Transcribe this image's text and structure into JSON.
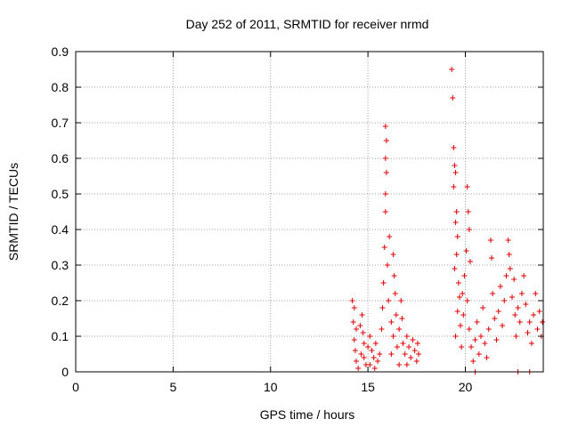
{
  "chart_data": {
    "type": "scatter",
    "title": "Day 252 of 2011, SRMTID for receiver nrmd",
    "xlabel": "GPS time / hours",
    "ylabel": "SRMTID / TECUs",
    "xlim": [
      0,
      24
    ],
    "ylim": [
      0,
      0.9
    ],
    "xticks": [
      0,
      5,
      10,
      15,
      20
    ],
    "yticks": [
      0,
      0.1,
      0.2,
      0.3,
      0.4,
      0.5,
      0.6,
      0.7,
      0.8,
      0.9
    ],
    "ytick_labels": [
      "0",
      "0.1",
      "0.2",
      "0.3",
      "0.4",
      "0.5",
      "0.6",
      "0.7",
      "0.8",
      "0.9"
    ],
    "grid": true,
    "marker": "+",
    "color": "#e00000",
    "series": [
      {
        "points": [
          [
            14.2,
            0.2
          ],
          [
            14.3,
            0.18
          ],
          [
            14.25,
            0.14
          ],
          [
            14.4,
            0.12
          ],
          [
            14.3,
            0.09
          ],
          [
            14.35,
            0.06
          ],
          [
            14.4,
            0.03
          ],
          [
            14.5,
            0.01
          ],
          [
            14.6,
            0.13
          ],
          [
            14.7,
            0.16
          ],
          [
            14.75,
            0.11
          ],
          [
            14.8,
            0.08
          ],
          [
            14.65,
            0.05
          ],
          [
            14.9,
            0.02
          ],
          [
            15.0,
            0.07
          ],
          [
            15.1,
            0.1
          ],
          [
            15.2,
            0.06
          ],
          [
            15.3,
            0.04
          ],
          [
            15.4,
            0.08
          ],
          [
            15.5,
            0.03
          ],
          [
            15.6,
            0.05
          ],
          [
            15.1,
            0.02
          ],
          [
            14.8,
            0.04
          ],
          [
            15.35,
            0.01
          ],
          [
            15.7,
            0.12
          ],
          [
            15.75,
            0.18
          ],
          [
            15.8,
            0.25
          ],
          [
            15.85,
            0.35
          ],
          [
            15.9,
            0.45
          ],
          [
            15.9,
            0.5
          ],
          [
            15.95,
            0.56
          ],
          [
            15.9,
            0.6
          ],
          [
            15.95,
            0.65
          ],
          [
            15.9,
            0.69
          ],
          [
            16.0,
            0.3
          ],
          [
            16.1,
            0.38
          ],
          [
            16.05,
            0.2
          ],
          [
            16.2,
            0.14
          ],
          [
            16.3,
            0.33
          ],
          [
            16.35,
            0.27
          ],
          [
            16.4,
            0.22
          ],
          [
            16.45,
            0.16
          ],
          [
            16.3,
            0.1
          ],
          [
            16.5,
            0.07
          ],
          [
            16.6,
            0.12
          ],
          [
            16.7,
            0.2
          ],
          [
            16.75,
            0.15
          ],
          [
            16.2,
            0.05
          ],
          [
            16.8,
            0.08
          ],
          [
            16.9,
            0.05
          ],
          [
            17.0,
            0.1
          ],
          [
            17.1,
            0.07
          ],
          [
            17.2,
            0.04
          ],
          [
            17.3,
            0.09
          ],
          [
            17.4,
            0.06
          ],
          [
            17.5,
            0.03
          ],
          [
            17.55,
            0.08
          ],
          [
            17.6,
            0.05
          ],
          [
            17.0,
            0.02
          ],
          [
            16.6,
            0.02
          ],
          [
            19.3,
            0.85
          ],
          [
            19.35,
            0.77
          ],
          [
            19.4,
            0.63
          ],
          [
            19.45,
            0.58
          ],
          [
            19.5,
            0.56
          ],
          [
            19.4,
            0.52
          ],
          [
            19.55,
            0.45
          ],
          [
            19.5,
            0.42
          ],
          [
            19.6,
            0.38
          ],
          [
            19.55,
            0.33
          ],
          [
            19.45,
            0.29
          ],
          [
            19.65,
            0.25
          ],
          [
            19.7,
            0.21
          ],
          [
            19.6,
            0.17
          ],
          [
            19.75,
            0.13
          ],
          [
            19.5,
            0.1
          ],
          [
            19.8,
            0.07
          ],
          [
            19.9,
            0.16
          ],
          [
            19.85,
            0.22
          ],
          [
            19.95,
            0.27
          ],
          [
            20.1,
            0.52
          ],
          [
            20.15,
            0.45
          ],
          [
            20.2,
            0.4
          ],
          [
            20.05,
            0.34
          ],
          [
            20.25,
            0.31
          ],
          [
            20.1,
            0.2
          ],
          [
            20.2,
            0.12
          ],
          [
            20.3,
            0.07
          ],
          [
            20.4,
            0.03
          ],
          [
            20.5,
            0.09
          ],
          [
            20.6,
            0.14
          ],
          [
            20.7,
            0.05
          ],
          [
            20.8,
            0.1
          ],
          [
            20.9,
            0.18
          ],
          [
            21.0,
            0.08
          ],
          [
            21.1,
            0.04
          ],
          [
            21.2,
            0.12
          ],
          [
            21.3,
            0.37
          ],
          [
            21.35,
            0.32
          ],
          [
            21.4,
            0.22
          ],
          [
            21.5,
            0.15
          ],
          [
            21.6,
            0.09
          ],
          [
            21.7,
            0.17
          ],
          [
            21.8,
            0.24
          ],
          [
            21.9,
            0.13
          ],
          [
            22.0,
            0.2
          ],
          [
            22.1,
            0.27
          ],
          [
            22.2,
            0.37
          ],
          [
            22.25,
            0.33
          ],
          [
            22.3,
            0.29
          ],
          [
            22.4,
            0.21
          ],
          [
            22.5,
            0.26
          ],
          [
            22.55,
            0.16
          ],
          [
            22.6,
            0.1
          ],
          [
            22.7,
            0.18
          ],
          [
            22.8,
            0.14
          ],
          [
            22.9,
            0.22
          ],
          [
            23.0,
            0.27
          ],
          [
            23.1,
            0.19
          ],
          [
            23.2,
            0.11
          ],
          [
            23.3,
            0.14
          ],
          [
            23.4,
            0.08
          ],
          [
            23.5,
            0.16
          ],
          [
            23.6,
            0.22
          ],
          [
            23.7,
            0.12
          ],
          [
            23.8,
            0.17
          ],
          [
            23.9,
            0.1
          ],
          [
            23.95,
            0.14
          ],
          [
            20.5,
            0.0
          ],
          [
            22.7,
            0.0
          ],
          [
            23.3,
            0.0
          ]
        ]
      }
    ]
  }
}
